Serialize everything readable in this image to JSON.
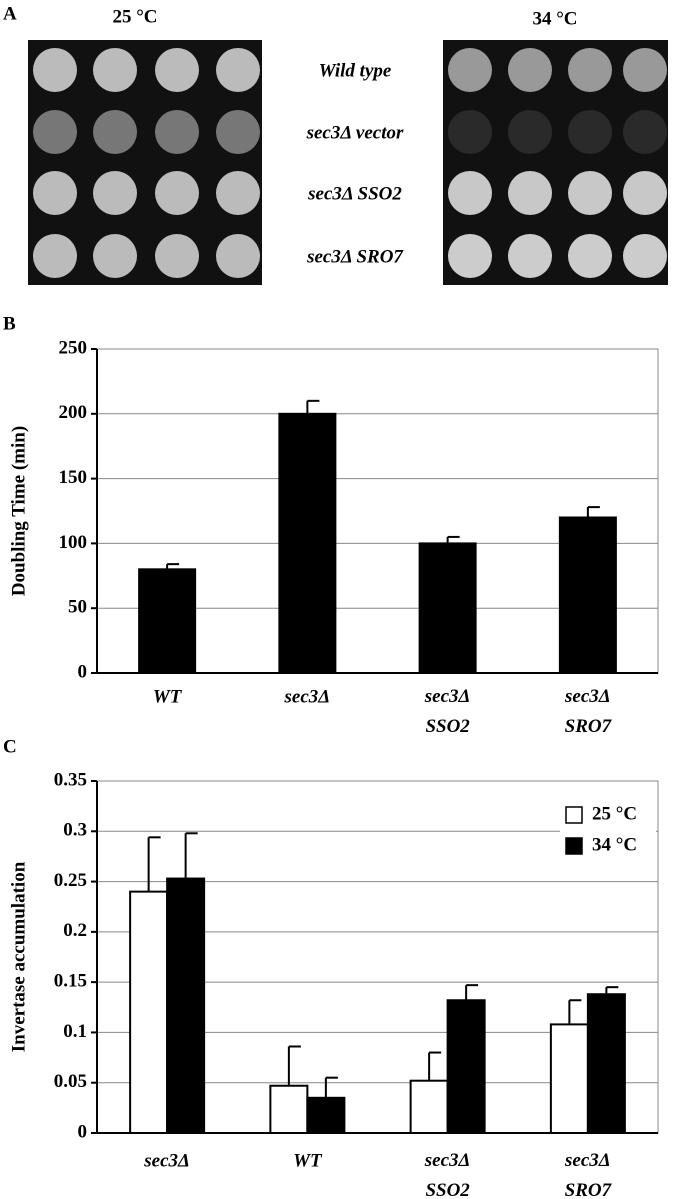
{
  "panel_a": {
    "label": "A",
    "plates": [
      {
        "temperature": "25 °C"
      },
      {
        "temperature": "34 °C"
      }
    ],
    "rows": [
      "Wild type",
      "sec3Δ vector",
      "sec3Δ SSO2",
      "sec3Δ SRO7"
    ]
  },
  "chart_data": [
    {
      "type": "bar",
      "label": "B",
      "y_label": "Doubling Time (min)",
      "categories": [
        "WT",
        "sec3Δ",
        "sec3Δ SSO2",
        "sec3Δ SRO7"
      ],
      "values": [
        80,
        200,
        100,
        120
      ],
      "errors": [
        4,
        10,
        5,
        8
      ],
      "color": "#000000",
      "ylim": [
        0,
        250
      ],
      "yticks": [
        0,
        50,
        100,
        150,
        200,
        250
      ],
      "grid": true
    },
    {
      "type": "grouped-bar",
      "label": "C",
      "y_label": "Invertase accumulation",
      "categories": [
        "sec3Δ",
        "WT",
        "sec3Δ SSO2",
        "sec3Δ SRO7"
      ],
      "series": [
        {
          "name": "25 °C",
          "color": "#ffffff",
          "values": [
            0.24,
            0.047,
            0.052,
            0.108
          ],
          "errors": [
            0.054,
            0.039,
            0.028,
            0.024
          ]
        },
        {
          "name": "34 °C",
          "color": "#000000",
          "values": [
            0.253,
            0.035,
            0.132,
            0.138
          ],
          "errors": [
            0.045,
            0.02,
            0.015,
            0.007
          ]
        }
      ],
      "ylim": [
        0,
        0.35
      ],
      "yticks": [
        0,
        0.05,
        0.1,
        0.15,
        0.2,
        0.25,
        0.3,
        0.35
      ],
      "grid": true,
      "legend": "top-right"
    }
  ]
}
